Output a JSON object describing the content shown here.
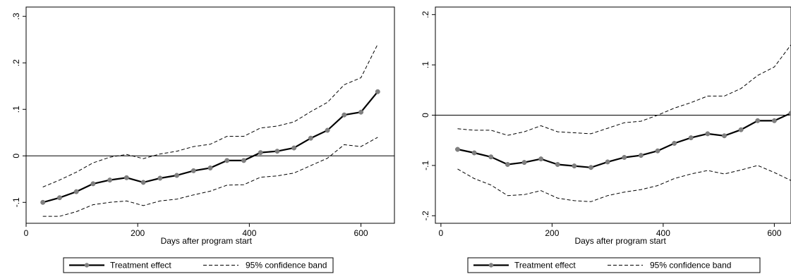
{
  "chart_data": [
    {
      "type": "line",
      "title": "",
      "xlabel": "Days after program start",
      "ylabel": "",
      "xlim": [
        0,
        660
      ],
      "ylim": [
        -0.145,
        0.32
      ],
      "xticks": [
        0,
        200,
        400,
        600
      ],
      "xtick_labels": [
        "0",
        "200",
        "400",
        "600"
      ],
      "yticks": [
        -0.1,
        0,
        0.1,
        0.2,
        0.3
      ],
      "ytick_labels": [
        "-.1",
        "0",
        ".1",
        ".2",
        ".3"
      ],
      "reference_line": 0,
      "grid": false,
      "legend_position": "bottom",
      "x": [
        30,
        60,
        90,
        120,
        150,
        180,
        210,
        240,
        270,
        300,
        330,
        360,
        390,
        420,
        450,
        480,
        510,
        540,
        570,
        600,
        630
      ],
      "series": [
        {
          "name": "Treatment effect",
          "style": "solid-markers",
          "values": [
            -0.1,
            -0.09,
            -0.077,
            -0.06,
            -0.052,
            -0.047,
            -0.057,
            -0.048,
            -0.042,
            -0.032,
            -0.026,
            -0.01,
            -0.01,
            0.007,
            0.01,
            0.017,
            0.038,
            0.055,
            0.088,
            0.094,
            0.138
          ]
        },
        {
          "name": "95% confidence band",
          "style": "dashed",
          "values": [
            -0.067,
            -0.052,
            -0.035,
            -0.015,
            -0.003,
            0.003,
            -0.006,
            0.004,
            0.01,
            0.02,
            0.025,
            0.042,
            0.042,
            0.06,
            0.064,
            0.073,
            0.095,
            0.115,
            0.153,
            0.168,
            0.24
          ]
        },
        {
          "name": "",
          "style": "dashed",
          "values": [
            -0.13,
            -0.13,
            -0.12,
            -0.105,
            -0.1,
            -0.097,
            -0.107,
            -0.097,
            -0.093,
            -0.084,
            -0.076,
            -0.063,
            -0.062,
            -0.046,
            -0.043,
            -0.037,
            -0.021,
            -0.005,
            0.024,
            0.02,
            0.04
          ]
        }
      ],
      "colors": {
        "line": "#000000",
        "marker": "#808080",
        "dashed": "#000000"
      }
    },
    {
      "type": "line",
      "title": "",
      "xlabel": "Days after program start",
      "ylabel": "",
      "xlim": [
        -10,
        630
      ],
      "ylim": [
        -0.215,
        0.215
      ],
      "xticks": [
        0,
        200,
        400,
        600
      ],
      "xtick_labels": [
        "0",
        "200",
        "400",
        "600"
      ],
      "yticks": [
        -0.2,
        -0.1,
        0,
        0.1,
        0.2
      ],
      "ytick_labels": [
        "-.2",
        "-.1",
        "0",
        ".1",
        ".2"
      ],
      "reference_line": 0,
      "grid": false,
      "legend_position": "bottom",
      "x": [
        30,
        60,
        90,
        120,
        150,
        180,
        210,
        240,
        270,
        300,
        330,
        360,
        390,
        420,
        450,
        480,
        510,
        540,
        570,
        600,
        630
      ],
      "series": [
        {
          "name": "Treatment effect",
          "style": "solid-markers",
          "values": [
            -0.068,
            -0.075,
            -0.083,
            -0.098,
            -0.094,
            -0.087,
            -0.098,
            -0.101,
            -0.104,
            -0.093,
            -0.084,
            -0.08,
            -0.071,
            -0.056,
            -0.045,
            -0.037,
            -0.041,
            -0.029,
            -0.011,
            -0.011,
            0.004
          ]
        },
        {
          "name": "95% confidence band",
          "style": "dashed",
          "values": [
            -0.027,
            -0.03,
            -0.03,
            -0.04,
            -0.033,
            -0.021,
            -0.033,
            -0.035,
            -0.037,
            -0.026,
            -0.015,
            -0.012,
            0.0,
            0.014,
            0.025,
            0.038,
            0.038,
            0.053,
            0.079,
            0.096,
            0.14
          ]
        },
        {
          "name": "",
          "style": "dashed",
          "values": [
            -0.107,
            -0.126,
            -0.139,
            -0.16,
            -0.158,
            -0.15,
            -0.165,
            -0.17,
            -0.172,
            -0.16,
            -0.153,
            -0.148,
            -0.14,
            -0.126,
            -0.117,
            -0.11,
            -0.117,
            -0.109,
            -0.1,
            -0.114,
            -0.13
          ]
        }
      ],
      "colors": {
        "line": "#000000",
        "marker": "#808080",
        "dashed": "#000000"
      }
    }
  ]
}
